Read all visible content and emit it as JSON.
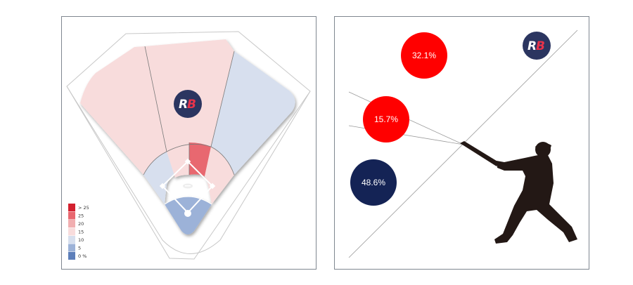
{
  "logo": {
    "letter_1": "R",
    "letter_2": "B",
    "letter_1_color": "#ffffff",
    "letter_2_color": "#e8334a",
    "bg_color": "#2b3560"
  },
  "spray_chart": {
    "legend": [
      {
        "label": "> 25",
        "color": "#d3202f"
      },
      {
        "label": "25",
        "color": "#e8676f"
      },
      {
        "label": "20",
        "color": "#f1aeb0"
      },
      {
        "label": "15",
        "color": "#f8dcdc"
      },
      {
        "label": "10",
        "color": "#d7dfee"
      },
      {
        "label": "5",
        "color": "#9cb2d8"
      },
      {
        "label": "0 %",
        "color": "#5d7fba"
      }
    ],
    "zones": [
      {
        "zone": "outfield-left",
        "bucket": "15"
      },
      {
        "zone": "outfield-center",
        "bucket": "15"
      },
      {
        "zone": "outfield-right",
        "bucket": "10"
      },
      {
        "zone": "infield-left",
        "bucket": "10"
      },
      {
        "zone": "infield-center-left",
        "bucket": "15"
      },
      {
        "zone": "infield-center-right",
        "bucket": "25"
      },
      {
        "zone": "infield-right",
        "bucket": "15"
      },
      {
        "zone": "home-area",
        "bucket": "5"
      }
    ]
  },
  "chart_data": {
    "type": "bubble",
    "series": [
      {
        "label": "32.1%",
        "value": 32.1,
        "color": "#ff0000"
      },
      {
        "label": "15.7%",
        "value": 15.7,
        "color": "#ff0000"
      },
      {
        "label": "48.6%",
        "value": 48.6,
        "color": "#142355"
      }
    ]
  },
  "colors": {
    "panel_border": "#7f8790",
    "batter_silhouette": "#231815"
  }
}
